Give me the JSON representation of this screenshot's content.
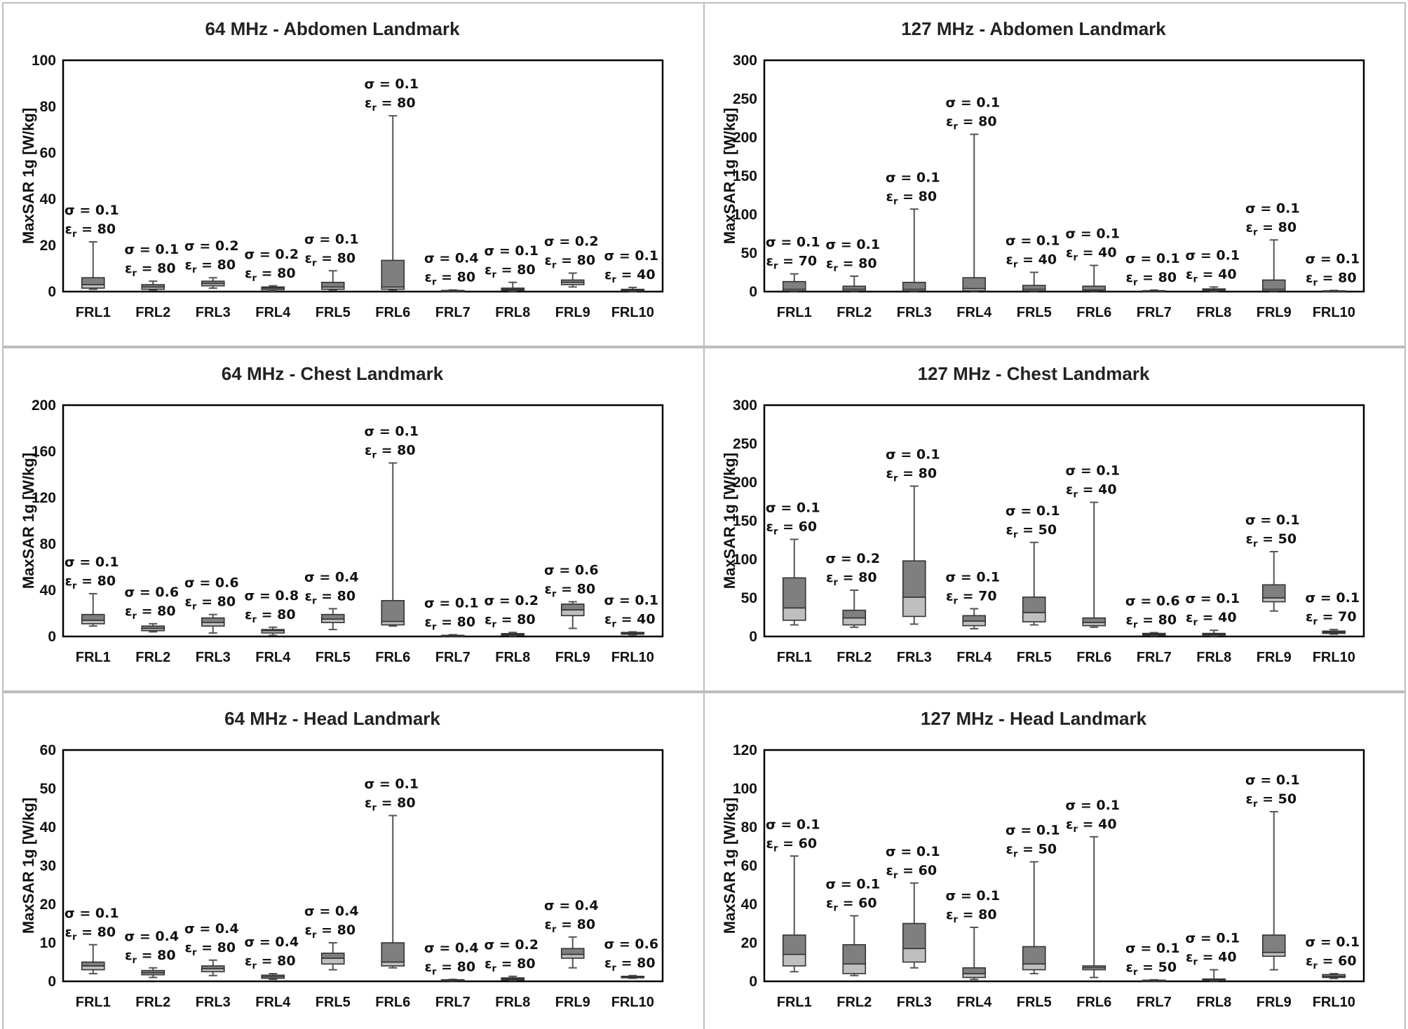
{
  "colors": {
    "upper_box": "#7f7f7f",
    "lower_box": "#bfbfbf",
    "whisker": "#555555",
    "panel_border": "#bdbdbd",
    "plot_border": "#000000",
    "text": "#111111"
  },
  "symbols": {
    "sigma_prefix": "σ = ",
    "eps_prefix": "ε",
    "eps_sub": "r",
    "eps_sep": " = "
  },
  "chart_data": [
    {
      "type": "box",
      "title": "64 MHz - Abdomen Landmark",
      "ylabel": "MaxSAR 1g [W/kg]",
      "ylim": [
        0,
        100
      ],
      "yticks": [
        0,
        20,
        40,
        60,
        80,
        100
      ],
      "categories": [
        "FRL1",
        "FRL2",
        "FRL3",
        "FRL4",
        "FRL5",
        "FRL6",
        "FRL7",
        "FRL8",
        "FRL9",
        "FRL10"
      ],
      "boxes": [
        {
          "min": 1,
          "q1": 1.5,
          "median": 3,
          "q3": 6,
          "max": 21.5,
          "sigma": "0.1",
          "eps": "80"
        },
        {
          "min": 0.5,
          "q1": 1,
          "median": 2,
          "q3": 3,
          "max": 4.5,
          "sigma": "0.1",
          "eps": "80"
        },
        {
          "min": 1.5,
          "q1": 2.5,
          "median": 3.5,
          "q3": 4.5,
          "max": 6,
          "sigma": "0.2",
          "eps": "80"
        },
        {
          "min": 0.3,
          "q1": 0.8,
          "median": 1.5,
          "q3": 2,
          "max": 2.5,
          "sigma": "0.2",
          "eps": "80"
        },
        {
          "min": 0.5,
          "q1": 1,
          "median": 2,
          "q3": 4,
          "max": 9,
          "sigma": "0.1",
          "eps": "80"
        },
        {
          "min": 0.5,
          "q1": 1,
          "median": 2,
          "q3": 13.5,
          "max": 76,
          "sigma": "0.1",
          "eps": "80"
        },
        {
          "min": 0.1,
          "q1": 0.2,
          "median": 0.3,
          "q3": 0.5,
          "max": 0.7,
          "sigma": "0.4",
          "eps": "80"
        },
        {
          "min": 0.2,
          "q1": 0.5,
          "median": 1,
          "q3": 1.5,
          "max": 4,
          "sigma": "0.1",
          "eps": "80"
        },
        {
          "min": 2,
          "q1": 3,
          "median": 4,
          "q3": 5,
          "max": 8,
          "sigma": "0.2",
          "eps": "80"
        },
        {
          "min": 0.1,
          "q1": 0.3,
          "median": 0.6,
          "q3": 1,
          "max": 1.8,
          "sigma": "0.1",
          "eps": "40"
        }
      ]
    },
    {
      "type": "box",
      "title": "127 MHz - Abdomen Landmark",
      "ylabel": "MaxSAR 1g [W/kg]",
      "ylim": [
        0,
        300
      ],
      "yticks": [
        0,
        50,
        100,
        150,
        200,
        250,
        300
      ],
      "categories": [
        "FRL1",
        "FRL2",
        "FRL3",
        "FRL4",
        "FRL5",
        "FRL6",
        "FRL7",
        "FRL8",
        "FRL9",
        "FRL10"
      ],
      "boxes": [
        {
          "min": 0.5,
          "q1": 1,
          "median": 3,
          "q3": 13,
          "max": 23,
          "sigma": "0.1",
          "eps": "70"
        },
        {
          "min": 0.5,
          "q1": 1,
          "median": 3,
          "q3": 7,
          "max": 20,
          "sigma": "0.1",
          "eps": "80"
        },
        {
          "min": 0.5,
          "q1": 1,
          "median": 3,
          "q3": 12,
          "max": 107,
          "sigma": "0.1",
          "eps": "80"
        },
        {
          "min": 0.5,
          "q1": 1,
          "median": 4,
          "q3": 18,
          "max": 204,
          "sigma": "0.1",
          "eps": "80"
        },
        {
          "min": 0.5,
          "q1": 1,
          "median": 3,
          "q3": 8,
          "max": 25,
          "sigma": "0.1",
          "eps": "40"
        },
        {
          "min": 0.5,
          "q1": 0.8,
          "median": 2,
          "q3": 7,
          "max": 34,
          "sigma": "0.1",
          "eps": "40"
        },
        {
          "min": 0.2,
          "q1": 0.4,
          "median": 0.8,
          "q3": 1.2,
          "max": 2,
          "sigma": "0.1",
          "eps": "80"
        },
        {
          "min": 0.3,
          "q1": 1,
          "median": 2,
          "q3": 3.5,
          "max": 6,
          "sigma": "0.1",
          "eps": "40"
        },
        {
          "min": 0.5,
          "q1": 1,
          "median": 3,
          "q3": 15,
          "max": 67,
          "sigma": "0.1",
          "eps": "80"
        },
        {
          "min": 0.1,
          "q1": 0.3,
          "median": 0.6,
          "q3": 1,
          "max": 1.5,
          "sigma": "0.1",
          "eps": "80"
        }
      ]
    },
    {
      "type": "box",
      "title": "64 MHz - Chest Landmark",
      "ylabel": "MaxSAR 1g [W/kg]",
      "ylim": [
        0,
        200
      ],
      "yticks": [
        0,
        40,
        80,
        120,
        160,
        200
      ],
      "categories": [
        "FRL1",
        "FRL2",
        "FRL3",
        "FRL4",
        "FRL5",
        "FRL6",
        "FRL7",
        "FRL8",
        "FRL9",
        "FRL10"
      ],
      "boxes": [
        {
          "min": 9,
          "q1": 11,
          "median": 14,
          "q3": 19,
          "max": 37,
          "sigma": "0.1",
          "eps": "80"
        },
        {
          "min": 4,
          "q1": 5,
          "median": 7,
          "q3": 9,
          "max": 11,
          "sigma": "0.6",
          "eps": "80"
        },
        {
          "min": 3,
          "q1": 9,
          "median": 12,
          "q3": 16,
          "max": 19,
          "sigma": "0.6",
          "eps": "80"
        },
        {
          "min": 1,
          "q1": 3,
          "median": 5,
          "q3": 6,
          "max": 8,
          "sigma": "0.8",
          "eps": "80"
        },
        {
          "min": 6,
          "q1": 12,
          "median": 15,
          "q3": 19,
          "max": 24,
          "sigma": "0.4",
          "eps": "80"
        },
        {
          "min": 9,
          "q1": 10,
          "median": 13,
          "q3": 31,
          "max": 150,
          "sigma": "0.1",
          "eps": "80"
        },
        {
          "min": 0.2,
          "q1": 0.4,
          "median": 0.7,
          "q3": 1,
          "max": 1.5,
          "sigma": "0.1",
          "eps": "80"
        },
        {
          "min": 0.5,
          "q1": 1,
          "median": 1.5,
          "q3": 2.5,
          "max": 3.5,
          "sigma": "0.2",
          "eps": "80"
        },
        {
          "min": 7,
          "q1": 18,
          "median": 23,
          "q3": 28,
          "max": 30,
          "sigma": "0.6",
          "eps": "80"
        },
        {
          "min": 1.5,
          "q1": 2,
          "median": 3,
          "q3": 3.5,
          "max": 4,
          "sigma": "0.1",
          "eps": "40"
        }
      ]
    },
    {
      "type": "box",
      "title": "127 MHz - Chest Landmark",
      "ylabel": "MaxSAR 1g [W/kg]",
      "ylim": [
        0,
        300
      ],
      "yticks": [
        0,
        50,
        100,
        150,
        200,
        250,
        300
      ],
      "categories": [
        "FRL1",
        "FRL2",
        "FRL3",
        "FRL4",
        "FRL5",
        "FRL6",
        "FRL7",
        "FRL8",
        "FRL9",
        "FRL10"
      ],
      "boxes": [
        {
          "min": 15,
          "q1": 21,
          "median": 37,
          "q3": 76,
          "max": 126,
          "sigma": "0.1",
          "eps": "60"
        },
        {
          "min": 12,
          "q1": 15,
          "median": 24,
          "q3": 34,
          "max": 60,
          "sigma": "0.2",
          "eps": "80"
        },
        {
          "min": 16,
          "q1": 26,
          "median": 51,
          "q3": 98,
          "max": 195,
          "sigma": "0.1",
          "eps": "80"
        },
        {
          "min": 10,
          "q1": 14,
          "median": 20,
          "q3": 27,
          "max": 36,
          "sigma": "0.1",
          "eps": "70"
        },
        {
          "min": 15,
          "q1": 19,
          "median": 31,
          "q3": 51,
          "max": 122,
          "sigma": "0.1",
          "eps": "50"
        },
        {
          "min": 12,
          "q1": 14,
          "median": 18,
          "q3": 24,
          "max": 174,
          "sigma": "0.1",
          "eps": "40"
        },
        {
          "min": 1,
          "q1": 1.5,
          "median": 2.5,
          "q3": 4,
          "max": 5,
          "sigma": "0.6",
          "eps": "80"
        },
        {
          "min": 1,
          "q1": 2,
          "median": 3,
          "q3": 4,
          "max": 8,
          "sigma": "0.1",
          "eps": "40"
        },
        {
          "min": 33,
          "q1": 45,
          "median": 50,
          "q3": 67,
          "max": 110,
          "sigma": "0.1",
          "eps": "50"
        },
        {
          "min": 3,
          "q1": 4,
          "median": 5.5,
          "q3": 7,
          "max": 9,
          "sigma": "0.1",
          "eps": "70"
        }
      ]
    },
    {
      "type": "box",
      "title": "64 MHz - Head Landmark",
      "ylabel": "MaxSAR 1g [W/kg]",
      "ylim": [
        0,
        60
      ],
      "yticks": [
        0,
        10,
        20,
        30,
        40,
        50,
        60
      ],
      "categories": [
        "FRL1",
        "FRL2",
        "FRL3",
        "FRL4",
        "FRL5",
        "FRL6",
        "FRL7",
        "FRL8",
        "FRL9",
        "FRL10"
      ],
      "boxes": [
        {
          "min": 2,
          "q1": 3,
          "median": 4,
          "q3": 5,
          "max": 9.5,
          "sigma": "0.1",
          "eps": "80"
        },
        {
          "min": 1,
          "q1": 1.7,
          "median": 2.2,
          "q3": 2.8,
          "max": 3.5,
          "sigma": "0.4",
          "eps": "80"
        },
        {
          "min": 1.5,
          "q1": 2.5,
          "median": 3.3,
          "q3": 4,
          "max": 5.5,
          "sigma": "0.4",
          "eps": "80"
        },
        {
          "min": 0.5,
          "q1": 0.8,
          "median": 1.2,
          "q3": 1.6,
          "max": 2,
          "sigma": "0.4",
          "eps": "80"
        },
        {
          "min": 3,
          "q1": 4.5,
          "median": 6,
          "q3": 7.3,
          "max": 10,
          "sigma": "0.4",
          "eps": "80"
        },
        {
          "min": 3.5,
          "q1": 4,
          "median": 5,
          "q3": 10,
          "max": 43,
          "sigma": "0.1",
          "eps": "80"
        },
        {
          "min": 0.1,
          "q1": 0.2,
          "median": 0.3,
          "q3": 0.4,
          "max": 0.5,
          "sigma": "0.4",
          "eps": "80"
        },
        {
          "min": 0.2,
          "q1": 0.3,
          "median": 0.6,
          "q3": 0.9,
          "max": 1.3,
          "sigma": "0.2",
          "eps": "80"
        },
        {
          "min": 3.5,
          "q1": 6,
          "median": 7,
          "q3": 8.5,
          "max": 11.5,
          "sigma": "0.4",
          "eps": "80"
        },
        {
          "min": 0.8,
          "q1": 1,
          "median": 1.1,
          "q3": 1.3,
          "max": 1.5,
          "sigma": "0.6",
          "eps": "80"
        }
      ]
    },
    {
      "type": "box",
      "title": "127 MHz - Head Landmark",
      "ylabel": "MaxSAR 1g [W/kg]",
      "ylim": [
        0,
        120
      ],
      "yticks": [
        0,
        20,
        40,
        60,
        80,
        100,
        120
      ],
      "categories": [
        "FRL1",
        "FRL2",
        "FRL3",
        "FRL4",
        "FRL5",
        "FRL6",
        "FRL7",
        "FRL8",
        "FRL9",
        "FRL10"
      ],
      "boxes": [
        {
          "min": 5,
          "q1": 8,
          "median": 14,
          "q3": 24,
          "max": 65,
          "sigma": "0.1",
          "eps": "60"
        },
        {
          "min": 3,
          "q1": 4,
          "median": 9,
          "q3": 19,
          "max": 34,
          "sigma": "0.1",
          "eps": "60"
        },
        {
          "min": 7,
          "q1": 10,
          "median": 17,
          "q3": 30,
          "max": 51,
          "sigma": "0.1",
          "eps": "60"
        },
        {
          "min": 1,
          "q1": 2,
          "median": 4,
          "q3": 7,
          "max": 28,
          "sigma": "0.1",
          "eps": "80"
        },
        {
          "min": 4,
          "q1": 6,
          "median": 9,
          "q3": 18,
          "max": 62,
          "sigma": "0.1",
          "eps": "50"
        },
        {
          "min": 2,
          "q1": 6,
          "median": 7,
          "q3": 8,
          "max": 75,
          "sigma": "0.1",
          "eps": "40"
        },
        {
          "min": 0.1,
          "q1": 0.2,
          "median": 0.4,
          "q3": 0.6,
          "max": 0.8,
          "sigma": "0.1",
          "eps": "50"
        },
        {
          "min": 0.2,
          "q1": 0.4,
          "median": 0.8,
          "q3": 1.2,
          "max": 6,
          "sigma": "0.1",
          "eps": "40"
        },
        {
          "min": 6,
          "q1": 13,
          "median": 15,
          "q3": 24,
          "max": 88,
          "sigma": "0.1",
          "eps": "50"
        },
        {
          "min": 1.5,
          "q1": 2,
          "median": 2.5,
          "q3": 3.5,
          "max": 4,
          "sigma": "0.1",
          "eps": "60"
        }
      ]
    }
  ]
}
